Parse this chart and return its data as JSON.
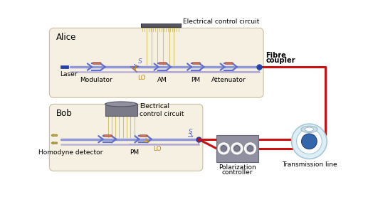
{
  "fig_w": 5.24,
  "fig_h": 2.77,
  "dpi": 100,
  "bg": "#ffffff",
  "chip_fill": "#f5f0e2",
  "chip_edge": "#c8bfa0",
  "ecc_fill": "#555560",
  "ecc_edge": "#333340",
  "bob_ecc_fill": "#7a7a88",
  "bob_ecc_edge": "#555560",
  "wire_color": "#d4c46a",
  "wg_main": "#7080cc",
  "wg_lo": "#a090c0",
  "wg_upper": "#8890cc",
  "heater_fill": "#c87060",
  "heater_edge": "#a05040",
  "laser_fill": "#2244aa",
  "dot_fill": "#2244aa",
  "red_cable": "#cc1111",
  "pc_fill": "#9090a0",
  "pc_edge": "#666676",
  "pc_circ_out": "#d0d0d8",
  "pc_circ_in": "#777788",
  "tl_outer": "#c8dde8",
  "tl_outer_edge": "#90aabb",
  "tl_white": "#ffffff",
  "tl_inner": "#4477aa",
  "tl_top_fill": "#ddeeff",
  "tl_top_edge": "#90aabb",
  "orange": "#cc8800",
  "blue_label": "#5566bb",
  "title_alice": "Alice",
  "title_bob": "Bob",
  "label_laser": "Laser",
  "label_modulator": "Modulator",
  "label_lo": "LO",
  "label_am": "AM",
  "label_pm": "PM",
  "label_attenuator": "Attenuator",
  "label_fibre1": "Fibre",
  "label_fibre2": "coupler",
  "label_elec": "Electrical control circuit",
  "label_elec_bob1": "Electrical",
  "label_elec_bob2": "control circuit",
  "label_homodyne": "Homodyne detector",
  "label_polarization1": "Polarization",
  "label_polarization2": "controller",
  "label_transmission": "Transmission line",
  "label_s": "S"
}
